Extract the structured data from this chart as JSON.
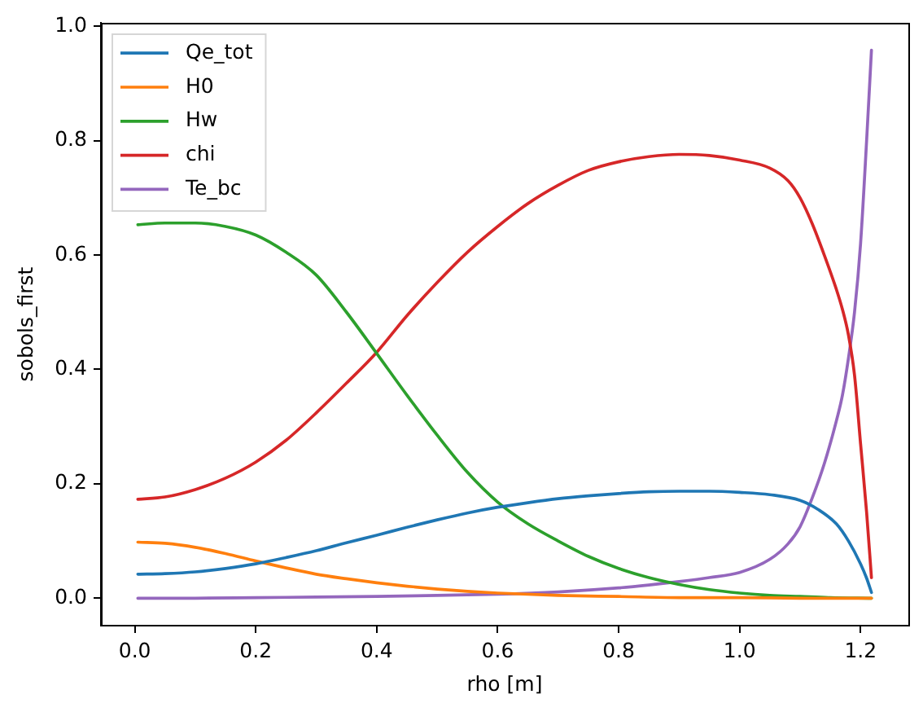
{
  "chart_data": {
    "type": "line",
    "xlabel": "rho [m]",
    "ylabel": "sobols_first",
    "xlim": [
      -0.056,
      1.279
    ],
    "ylim": [
      -0.048,
      1.006
    ],
    "xticks": [
      {
        "value": 0,
        "label": "0.0"
      },
      {
        "value": 0.2,
        "label": "0.2"
      },
      {
        "value": 0.4,
        "label": "0.4"
      },
      {
        "value": 0.6,
        "label": "0.6"
      },
      {
        "value": 0.8,
        "label": "0.8"
      },
      {
        "value": 1.0,
        "label": "1.0"
      },
      {
        "value": 1.2,
        "label": "1.2"
      }
    ],
    "yticks": [
      {
        "value": 0,
        "label": "0.0"
      },
      {
        "value": 0.2,
        "label": "0.2"
      },
      {
        "value": 0.4,
        "label": "0.4"
      },
      {
        "value": 0.6,
        "label": "0.6"
      },
      {
        "value": 0.8,
        "label": "0.8"
      },
      {
        "value": 1.0,
        "label": "1.0"
      }
    ],
    "legend": "top left",
    "marker": "none",
    "line_style": "solid",
    "series": [
      {
        "name": "Qe_tot",
        "color": "#1f77b4",
        "x": [
          0.005,
          0.05,
          0.1,
          0.15,
          0.2,
          0.25,
          0.3,
          0.35,
          0.4,
          0.45,
          0.5,
          0.55,
          0.6,
          0.65,
          0.7,
          0.75,
          0.8,
          0.85,
          0.9,
          0.95,
          1.0,
          1.05,
          1.1,
          1.13,
          1.16,
          1.18,
          1.2,
          1.21,
          1.218
        ],
        "values": [
          0.042,
          0.043,
          0.046,
          0.052,
          0.06,
          0.071,
          0.083,
          0.097,
          0.11,
          0.124,
          0.137,
          0.149,
          0.159,
          0.167,
          0.174,
          0.179,
          0.183,
          0.186,
          0.187,
          0.187,
          0.185,
          0.181,
          0.171,
          0.155,
          0.13,
          0.1,
          0.06,
          0.035,
          0.01
        ]
      },
      {
        "name": "H0",
        "color": "#ff7f0e",
        "x": [
          0.005,
          0.05,
          0.1,
          0.15,
          0.2,
          0.25,
          0.3,
          0.35,
          0.4,
          0.45,
          0.5,
          0.55,
          0.6,
          0.7,
          0.8,
          0.9,
          1.0,
          1.1,
          1.218
        ],
        "values": [
          0.098,
          0.096,
          0.089,
          0.078,
          0.065,
          0.053,
          0.042,
          0.034,
          0.027,
          0.021,
          0.016,
          0.012,
          0.009,
          0.005,
          0.003,
          0.001,
          0.001,
          0,
          0
        ]
      },
      {
        "name": "Hw",
        "color": "#2ca02c",
        "x": [
          0.005,
          0.05,
          0.1,
          0.15,
          0.2,
          0.25,
          0.3,
          0.35,
          0.4,
          0.45,
          0.5,
          0.55,
          0.6,
          0.65,
          0.7,
          0.75,
          0.8,
          0.85,
          0.9,
          0.95,
          1.0,
          1.05,
          1.1,
          1.15,
          1.218
        ],
        "values": [
          0.653,
          0.656,
          0.656,
          0.65,
          0.635,
          0.605,
          0.565,
          0.5,
          0.428,
          0.355,
          0.285,
          0.22,
          0.168,
          0.13,
          0.1,
          0.073,
          0.052,
          0.036,
          0.024,
          0.015,
          0.009,
          0.005,
          0.003,
          0.001,
          0
        ]
      },
      {
        "name": "chi",
        "color": "#d62728",
        "x": [
          0.005,
          0.05,
          0.1,
          0.15,
          0.2,
          0.25,
          0.3,
          0.35,
          0.4,
          0.45,
          0.5,
          0.55,
          0.6,
          0.65,
          0.7,
          0.75,
          0.8,
          0.85,
          0.9,
          0.95,
          1.0,
          1.05,
          1.08,
          1.1,
          1.12,
          1.14,
          1.16,
          1.17,
          1.18,
          1.19,
          1.2,
          1.21,
          1.218
        ],
        "values": [
          0.173,
          0.177,
          0.19,
          0.21,
          0.238,
          0.276,
          0.324,
          0.376,
          0.43,
          0.494,
          0.552,
          0.605,
          0.65,
          0.69,
          0.722,
          0.748,
          0.763,
          0.772,
          0.776,
          0.774,
          0.766,
          0.752,
          0.73,
          0.7,
          0.655,
          0.6,
          0.54,
          0.505,
          0.46,
          0.39,
          0.27,
          0.15,
          0.036
        ]
      },
      {
        "name": "Te_bc",
        "color": "#9467bd",
        "x": [
          0.005,
          0.1,
          0.2,
          0.3,
          0.4,
          0.5,
          0.6,
          0.7,
          0.8,
          0.85,
          0.9,
          0.95,
          1.0,
          1.05,
          1.08,
          1.1,
          1.12,
          1.14,
          1.16,
          1.17,
          1.18,
          1.19,
          1.2,
          1.21,
          1.218
        ],
        "values": [
          0,
          0,
          0.001,
          0.002,
          0.003,
          0.005,
          0.007,
          0.011,
          0.018,
          0.023,
          0.029,
          0.036,
          0.045,
          0.068,
          0.095,
          0.125,
          0.175,
          0.235,
          0.31,
          0.355,
          0.42,
          0.5,
          0.62,
          0.8,
          0.958
        ]
      }
    ]
  }
}
